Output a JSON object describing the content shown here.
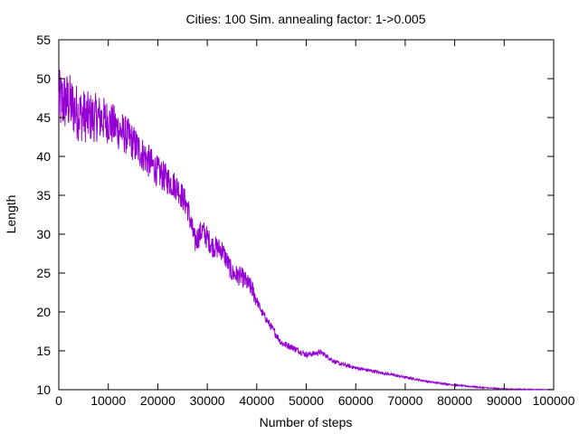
{
  "chart_data": {
    "type": "line",
    "title": "Cities: 100 Sim. annealing factor: 1->0.005",
    "xlabel": "Number of steps",
    "ylabel": "Length",
    "xlim": [
      0,
      100000
    ],
    "ylim": [
      10,
      55
    ],
    "x_ticks": [
      "0",
      "10000",
      "20000",
      "30000",
      "40000",
      "50000",
      "60000",
      "70000",
      "80000",
      "90000",
      "100000"
    ],
    "y_ticks": [
      "10",
      "15",
      "20",
      "25",
      "30",
      "35",
      "40",
      "45",
      "50",
      "55"
    ],
    "grid": false,
    "line_color": "#9400d3",
    "series": [
      {
        "x": [
          0,
          2000,
          4000,
          6000,
          8000,
          10000,
          12000,
          14000,
          16000,
          18000,
          20000,
          22000,
          24000,
          26000,
          27500,
          29000,
          31000,
          33000,
          35000,
          37000,
          39000,
          41000,
          43000,
          45000,
          47000,
          50000,
          53000,
          56000,
          60000,
          65000,
          70000,
          75000,
          80000,
          85000,
          90000,
          95000,
          100000
        ],
        "values": [
          47,
          47,
          45.5,
          45,
          45,
          44.5,
          43.5,
          42.5,
          41,
          39.5,
          38,
          37,
          36,
          33.5,
          29,
          30.5,
          28.5,
          28,
          25,
          24.5,
          23,
          20,
          18,
          16,
          15.5,
          14.5,
          14.8,
          13.5,
          12.8,
          12.2,
          11.6,
          11,
          10.6,
          10.3,
          10.1,
          10.05,
          10
        ]
      }
    ]
  }
}
